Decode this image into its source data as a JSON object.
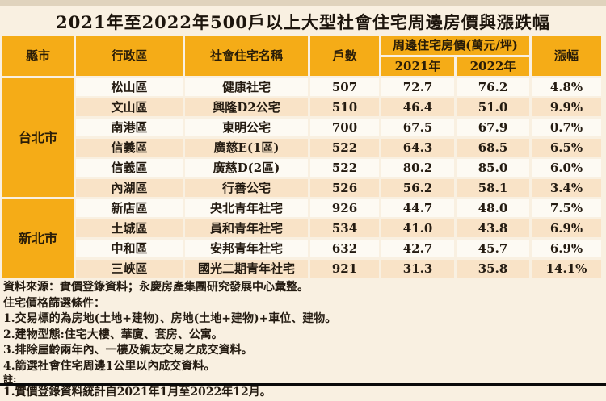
{
  "title": "2021年至2022年500戶以上大型社會住宅周邊房價與漲跌幅",
  "table": {
    "headers": {
      "county": "縣市",
      "district": "行政區",
      "housing_name": "社會住宅名稱",
      "units": "戶數",
      "price_group": "周邊住宅房價(萬元/坪)",
      "year_2021": "2021年",
      "year_2022": "2022年",
      "change": "漲幅"
    },
    "groups": [
      {
        "county": "台北市",
        "rows": [
          {
            "cells": [
              "松山區",
              "健康社宅",
              "507",
              "72.7",
              "76.2",
              "4.8%"
            ]
          },
          {
            "cells": [
              "文山區",
              "興隆D2公宅",
              "510",
              "46.4",
              "51.0",
              "9.9%"
            ]
          },
          {
            "cells": [
              "南港區",
              "東明公宅",
              "700",
              "67.5",
              "67.9",
              "0.7%"
            ]
          },
          {
            "cells": [
              "信義區",
              "廣慈E(1區)",
              "522",
              "64.3",
              "68.5",
              "6.5%"
            ]
          },
          {
            "cells": [
              "信義區",
              "廣慈D(2區)",
              "522",
              "80.2",
              "85.0",
              "6.0%"
            ]
          },
          {
            "cells": [
              "內湖區",
              "行善公宅",
              "526",
              "56.2",
              "58.1",
              "3.4%"
            ]
          }
        ]
      },
      {
        "county": "新北市",
        "rows": [
          {
            "cells": [
              "新店區",
              "央北青年社宅",
              "926",
              "44.7",
              "48.0",
              "7.5%"
            ]
          },
          {
            "cells": [
              "土城區",
              "員和青年社宅",
              "534",
              "41.0",
              "43.8",
              "6.9%"
            ]
          },
          {
            "cells": [
              "中和區",
              "安邦青年社宅",
              "632",
              "42.7",
              "45.7",
              "6.9%"
            ]
          },
          {
            "cells": [
              "三峽區",
              "國光二期青年社宅",
              "921",
              "31.3",
              "35.8",
              "14.1%"
            ]
          }
        ]
      }
    ]
  },
  "footer": {
    "lines": [
      "資料來源：實價登錄資料；永慶房產集團研究發展中心彙整。",
      "住宅價格篩選條件：",
      "1.交易標的為房地(土地+建物)、房地(土地+建物)+車位、建物。",
      "2.建物型態:住宅大樓、華廈、套房、公寓。",
      "3.排除屋齡兩年內、一樓及親友交易之成交資料。",
      "4.篩選社會住宅周邊1公里以內成交資料。",
      "註:",
      "1.實價登錄資料統計自2021年1月至2022年12月。"
    ]
  },
  "colors": {
    "header_amber": "#f5ac17",
    "page_cream": "#f9f0e1",
    "row_white": "#fdfaf3",
    "row_peach": "#f9e3c7",
    "text_dark": "#241b11",
    "bottom_bar": "#0a0a0a"
  }
}
